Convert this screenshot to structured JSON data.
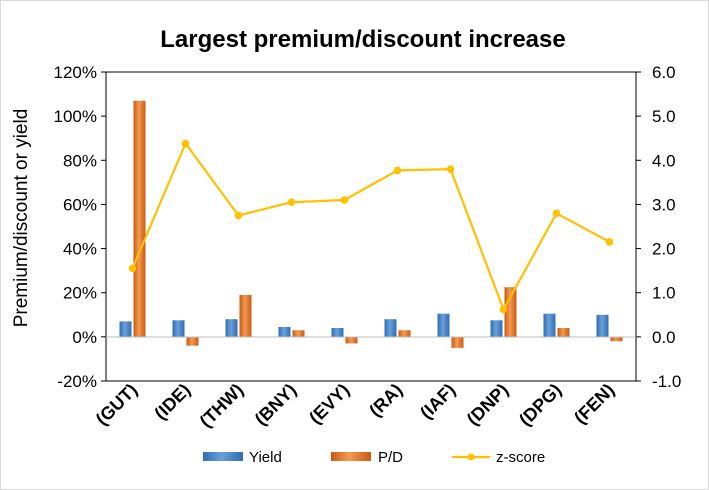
{
  "chart_data": {
    "type": "bar",
    "title": "Largest premium/discount increase",
    "ylabel": "Premium/discount or yield",
    "y2label": "",
    "categories": [
      "(GUT)",
      "(IDE)",
      "(THW)",
      "(BNY)",
      "(EVY)",
      "(RA)",
      "(IAF)",
      "(DNP)",
      "(DPG)",
      "(FEN)"
    ],
    "ylim": [
      -20,
      120
    ],
    "y_ticks": [
      "-20%",
      "0%",
      "20%",
      "40%",
      "60%",
      "80%",
      "100%",
      "120%"
    ],
    "y2lim": [
      -1.0,
      6.0
    ],
    "y2_ticks": [
      "-1.0",
      "0.0",
      "1.0",
      "2.0",
      "3.0",
      "4.0",
      "5.0",
      "6.0"
    ],
    "grid": false,
    "legend_position": "bottom",
    "series": [
      {
        "name": "Yield",
        "type": "bar",
        "axis": "left",
        "color": "#4a86c8",
        "values": [
          7,
          7.5,
          8,
          4.5,
          4,
          8,
          10.5,
          7.5,
          10.5,
          10
        ]
      },
      {
        "name": "P/D",
        "type": "bar",
        "axis": "left",
        "color": "#ed7d31",
        "values": [
          107,
          -4,
          19,
          3,
          -3,
          3,
          -5,
          22.5,
          4,
          -2
        ]
      },
      {
        "name": "z-score",
        "type": "line",
        "axis": "right",
        "color": "#ffc000",
        "values": [
          1.55,
          4.38,
          2.75,
          3.05,
          3.1,
          3.77,
          3.8,
          0.62,
          2.8,
          2.15
        ]
      }
    ]
  }
}
